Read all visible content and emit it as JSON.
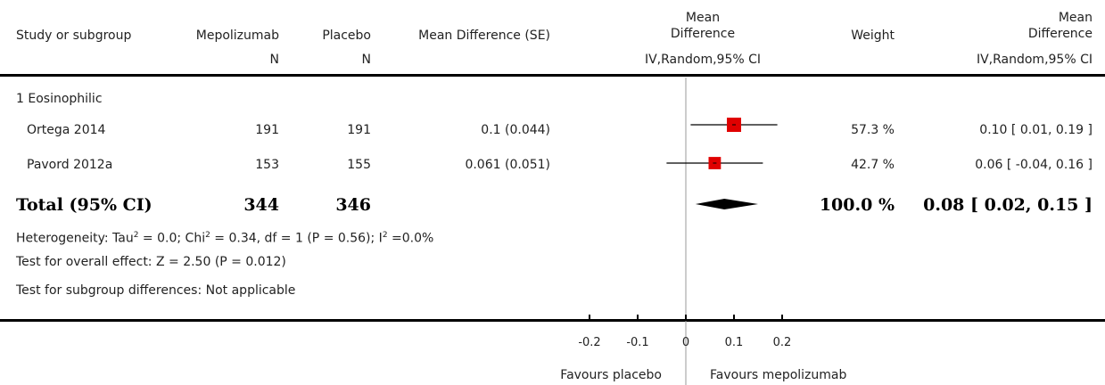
{
  "headers": {
    "study": "Study or subgroup",
    "exp": "Mepolizumab",
    "ctrl": "Placebo",
    "md_se": "Mean Difference (SE)",
    "md_plot_line1": "Mean",
    "md_plot_line2": "Difference",
    "weight": "Weight",
    "md_line1": "Mean",
    "md_line2": "Difference",
    "n_exp": "N",
    "n_ctrl": "N",
    "method_plot": "IV,Random,95% CI",
    "method_md": "IV,Random,95% CI"
  },
  "subgroup": "1 Eosinophilic",
  "studies": [
    {
      "name": "Ortega 2014",
      "n_exp": "191",
      "n_ctrl": "191",
      "md_se": "0.1 (0.044)",
      "weight": "57.3 %",
      "ci_text": "0.10 [ 0.01, 0.19 ]"
    },
    {
      "name": "Pavord 2012a",
      "n_exp": "153",
      "n_ctrl": "155",
      "md_se": "0.061 (0.051)",
      "weight": "42.7 %",
      "ci_text": "0.06 [ -0.04, 0.16 ]"
    }
  ],
  "total": {
    "label": "Total (95% CI)",
    "n_exp": "344",
    "n_ctrl": "346",
    "weight": "100.0 %",
    "ci_text": "0.08 [ 0.02, 0.15 ]"
  },
  "heterogeneity": {
    "p1": "Heterogeneity: Tau",
    "sup1": "2",
    "p2": " = 0.0; Chi",
    "sup2": "2",
    "p3": " = 0.34, df = 1 (P = 0.56); I",
    "sup3": "2",
    "p4": " =0.0%"
  },
  "overall_effect": "Test for overall effect: Z = 2.50 (P = 0.012)",
  "subgroup_diff": "Test for subgroup differences: Not applicable",
  "axis": {
    "favours_left": "Favours placebo",
    "favours_right": "Favours mepolizumab"
  },
  "colors": {
    "marker": "#e00000",
    "diamond": "#000000",
    "lines": "#000000",
    "zero_line": "#999999"
  },
  "chart_data": {
    "type": "forest",
    "xlim": [
      -0.2,
      0.2
    ],
    "ticks": [
      -0.2,
      -0.1,
      0,
      0.1,
      0.2
    ],
    "tick_labels": [
      "-0.2",
      "-0.1",
      "0",
      "0.1",
      "0.2"
    ],
    "studies": [
      {
        "name": "Ortega 2014",
        "est": 0.1,
        "lo": 0.01,
        "hi": 0.19,
        "weight": 57.3
      },
      {
        "name": "Pavord 2012a",
        "est": 0.06,
        "lo": -0.04,
        "hi": 0.16,
        "weight": 42.7
      }
    ],
    "pooled": {
      "est": 0.08,
      "lo": 0.02,
      "hi": 0.15
    }
  }
}
